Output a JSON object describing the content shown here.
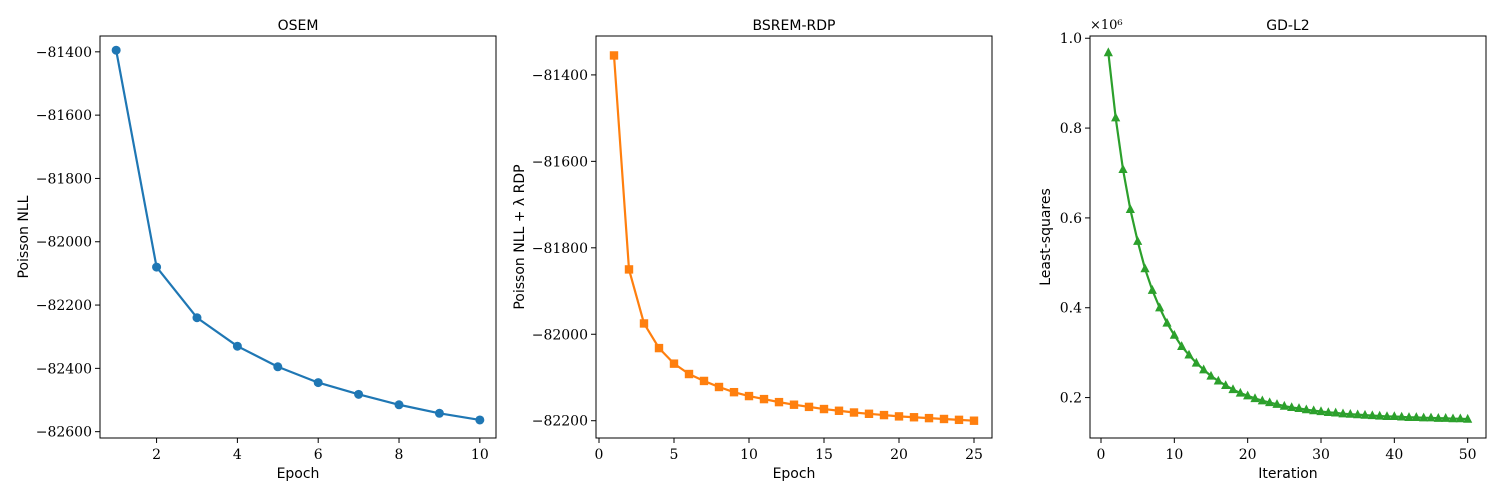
{
  "chart_data": [
    {
      "type": "line",
      "title": "OSEM",
      "xlabel": "Epoch",
      "ylabel": "Poisson NLL",
      "color": "#1f77b4",
      "marker": "circle",
      "xlim": [
        0.6,
        10.4
      ],
      "ylim": [
        -82620,
        -81350
      ],
      "xticks": [
        2,
        4,
        6,
        8,
        10
      ],
      "xtick_labels": [
        "2",
        "4",
        "6",
        "8",
        "10"
      ],
      "yticks": [
        -81400,
        -81600,
        -81800,
        -82000,
        -82200,
        -82400,
        -82600
      ],
      "ytick_labels": [
        "−81400",
        "−81600",
        "−81800",
        "−82000",
        "−82200",
        "−82400",
        "−82600"
      ],
      "x": [
        1,
        2,
        3,
        4,
        5,
        6,
        7,
        8,
        9,
        10
      ],
      "values": [
        -81395,
        -82080,
        -82240,
        -82330,
        -82395,
        -82445,
        -82482,
        -82515,
        -82542,
        -82563
      ]
    },
    {
      "type": "line",
      "title": "BSREM-RDP",
      "xlabel": "Epoch",
      "ylabel": "Poisson NLL + λ RDP",
      "color": "#ff7f0e",
      "marker": "square",
      "xlim": [
        -0.2,
        26.2
      ],
      "ylim": [
        -82240,
        -81310
      ],
      "xticks": [
        0,
        5,
        10,
        15,
        20,
        25
      ],
      "xtick_labels": [
        "0",
        "5",
        "10",
        "15",
        "20",
        "25"
      ],
      "yticks": [
        -81400,
        -81600,
        -81800,
        -82000,
        -82200
      ],
      "ytick_labels": [
        "−81400",
        "−81600",
        "−81800",
        "−82000",
        "−82200"
      ],
      "x": [
        1,
        2,
        3,
        4,
        5,
        6,
        7,
        8,
        9,
        10,
        11,
        12,
        13,
        14,
        15,
        16,
        17,
        18,
        19,
        20,
        21,
        22,
        23,
        24,
        25
      ],
      "values": [
        -81355,
        -81850,
        -81975,
        -82032,
        -82068,
        -82092,
        -82108,
        -82122,
        -82134,
        -82143,
        -82150,
        -82157,
        -82163,
        -82168,
        -82173,
        -82177,
        -82181,
        -82184,
        -82187,
        -82190,
        -82192,
        -82194,
        -82196,
        -82198,
        -82200
      ]
    },
    {
      "type": "line",
      "title": "GD-L2",
      "xlabel": "Iteration",
      "ylabel": "Least-squares",
      "offset_text": "×10⁶",
      "color": "#2ca02c",
      "marker": "triangle",
      "xlim": [
        -1.5,
        52.5
      ],
      "ylim": [
        0.11,
        1.005
      ],
      "xticks": [
        0,
        10,
        20,
        30,
        40,
        50
      ],
      "xtick_labels": [
        "0",
        "10",
        "20",
        "30",
        "40",
        "50"
      ],
      "yticks": [
        1.0,
        0.8,
        0.6,
        0.4,
        0.2
      ],
      "ytick_labels": [
        "1.0",
        "0.8",
        "0.6",
        "0.4",
        "0.2"
      ],
      "x": [
        1,
        2,
        3,
        4,
        5,
        6,
        7,
        8,
        9,
        10,
        11,
        12,
        13,
        14,
        15,
        16,
        17,
        18,
        19,
        20,
        21,
        22,
        23,
        24,
        25,
        26,
        27,
        28,
        29,
        30,
        31,
        32,
        33,
        34,
        35,
        36,
        37,
        38,
        39,
        40,
        41,
        42,
        43,
        44,
        45,
        46,
        47,
        48,
        49,
        50
      ],
      "values": [
        0.968,
        0.823,
        0.708,
        0.619,
        0.548,
        0.487,
        0.439,
        0.4,
        0.366,
        0.339,
        0.314,
        0.295,
        0.277,
        0.262,
        0.248,
        0.237,
        0.227,
        0.218,
        0.21,
        0.204,
        0.198,
        0.193,
        0.189,
        0.185,
        0.181,
        0.178,
        0.176,
        0.173,
        0.171,
        0.169,
        0.167,
        0.166,
        0.164,
        0.163,
        0.162,
        0.161,
        0.16,
        0.159,
        0.158,
        0.158,
        0.157,
        0.156,
        0.156,
        0.155,
        0.155,
        0.154,
        0.154,
        0.153,
        0.153,
        0.152
      ]
    }
  ]
}
